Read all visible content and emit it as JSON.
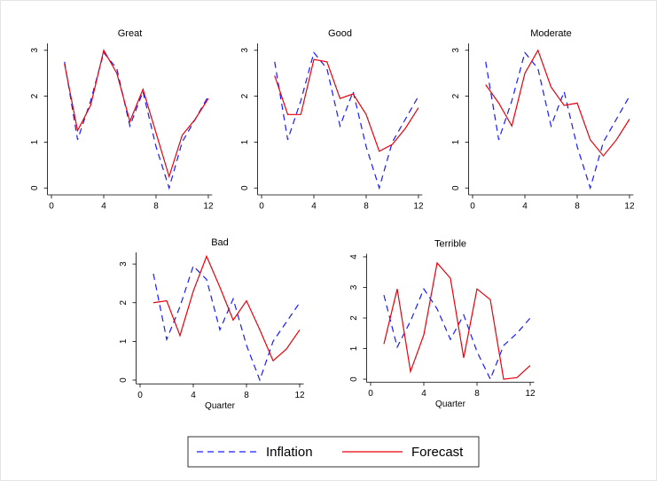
{
  "chart_data": [
    {
      "type": "line",
      "title": "Great",
      "x": [
        1,
        2,
        3,
        4,
        5,
        6,
        7,
        8,
        9,
        10,
        11,
        12
      ],
      "series": [
        {
          "name": "Inflation",
          "color": "#1a1aff",
          "style": "dashed",
          "values": [
            2.75,
            1.05,
            1.9,
            2.95,
            2.6,
            1.35,
            2.1,
            0.9,
            0.0,
            1.0,
            1.5,
            2.0
          ]
        },
        {
          "name": "Forecast",
          "color": "#e8000b",
          "style": "solid",
          "values": [
            2.7,
            1.25,
            1.8,
            3.0,
            2.5,
            1.45,
            2.15,
            1.2,
            0.25,
            1.15,
            1.5,
            1.95
          ]
        }
      ],
      "xlim": [
        -0.3,
        12.3
      ],
      "xticks": [
        0,
        4,
        8,
        12
      ],
      "ylim": [
        -0.15,
        3.15
      ],
      "yticks": [
        0,
        1,
        2,
        3
      ]
    },
    {
      "type": "line",
      "title": "Good",
      "x": [
        1,
        2,
        3,
        4,
        5,
        6,
        7,
        8,
        9,
        10,
        11,
        12
      ],
      "series": [
        {
          "name": "Inflation",
          "color": "#1a1aff",
          "style": "dashed",
          "values": [
            2.75,
            1.05,
            1.9,
            2.95,
            2.6,
            1.35,
            2.1,
            0.9,
            0.0,
            1.0,
            1.5,
            2.0
          ]
        },
        {
          "name": "Forecast",
          "color": "#e8000b",
          "style": "solid",
          "values": [
            2.45,
            1.6,
            1.6,
            2.8,
            2.75,
            1.95,
            2.05,
            1.6,
            0.8,
            0.95,
            1.3,
            1.75
          ]
        }
      ],
      "xlim": [
        -0.3,
        12.3
      ],
      "xticks": [
        0,
        4,
        8,
        12
      ],
      "ylim": [
        -0.15,
        3.15
      ],
      "yticks": [
        0,
        1,
        2,
        3
      ]
    },
    {
      "type": "line",
      "title": "Moderate",
      "x": [
        1,
        2,
        3,
        4,
        5,
        6,
        7,
        8,
        9,
        10,
        11,
        12
      ],
      "series": [
        {
          "name": "Inflation",
          "color": "#1a1aff",
          "style": "dashed",
          "values": [
            2.75,
            1.05,
            1.9,
            2.95,
            2.6,
            1.35,
            2.1,
            0.9,
            0.0,
            1.0,
            1.5,
            2.0
          ]
        },
        {
          "name": "Forecast",
          "color": "#e8000b",
          "style": "solid",
          "values": [
            2.25,
            1.85,
            1.35,
            2.5,
            3.0,
            2.2,
            1.8,
            1.85,
            1.05,
            0.7,
            1.05,
            1.5
          ]
        }
      ],
      "xlim": [
        -0.3,
        12.3
      ],
      "xticks": [
        0,
        4,
        8,
        12
      ],
      "ylim": [
        -0.15,
        3.15
      ],
      "yticks": [
        0,
        1,
        2,
        3
      ]
    },
    {
      "type": "line",
      "title": "Bad",
      "xlabel": "Quarter",
      "x": [
        1,
        2,
        3,
        4,
        5,
        6,
        7,
        8,
        9,
        10,
        11,
        12
      ],
      "series": [
        {
          "name": "Inflation",
          "color": "#1a1aff",
          "style": "dashed",
          "values": [
            2.75,
            1.05,
            1.9,
            2.95,
            2.6,
            1.3,
            2.1,
            0.9,
            0.0,
            1.0,
            1.5,
            2.0
          ]
        },
        {
          "name": "Forecast",
          "color": "#e8000b",
          "style": "solid",
          "values": [
            2.0,
            2.05,
            1.15,
            2.3,
            3.2,
            2.4,
            1.55,
            2.05,
            1.3,
            0.5,
            0.8,
            1.3
          ]
        }
      ],
      "xlim": [
        -0.3,
        12.3
      ],
      "xticks": [
        0,
        4,
        8,
        12
      ],
      "ylim": [
        -0.1,
        3.3
      ],
      "yticks": [
        0,
        1,
        2,
        3
      ]
    },
    {
      "type": "line",
      "title": "Terrible",
      "xlabel": "Quarter",
      "x": [
        1,
        2,
        3,
        4,
        5,
        6,
        7,
        8,
        9,
        10,
        11,
        12
      ],
      "series": [
        {
          "name": "Inflation",
          "color": "#1a1aff",
          "style": "dashed",
          "values": [
            2.75,
            1.05,
            1.9,
            2.95,
            2.3,
            1.3,
            2.1,
            0.9,
            0.0,
            1.1,
            1.5,
            2.0
          ]
        },
        {
          "name": "Forecast",
          "color": "#e8000b",
          "style": "solid",
          "values": [
            1.15,
            2.95,
            0.25,
            1.45,
            3.8,
            3.3,
            0.7,
            2.95,
            2.6,
            0.0,
            0.05,
            0.45
          ]
        }
      ],
      "xlim": [
        -0.3,
        12.3
      ],
      "xticks": [
        0,
        4,
        8,
        12
      ],
      "ylim": [
        -0.1,
        4.1
      ],
      "yticks": [
        0,
        1,
        2,
        3,
        4
      ]
    }
  ]
}
